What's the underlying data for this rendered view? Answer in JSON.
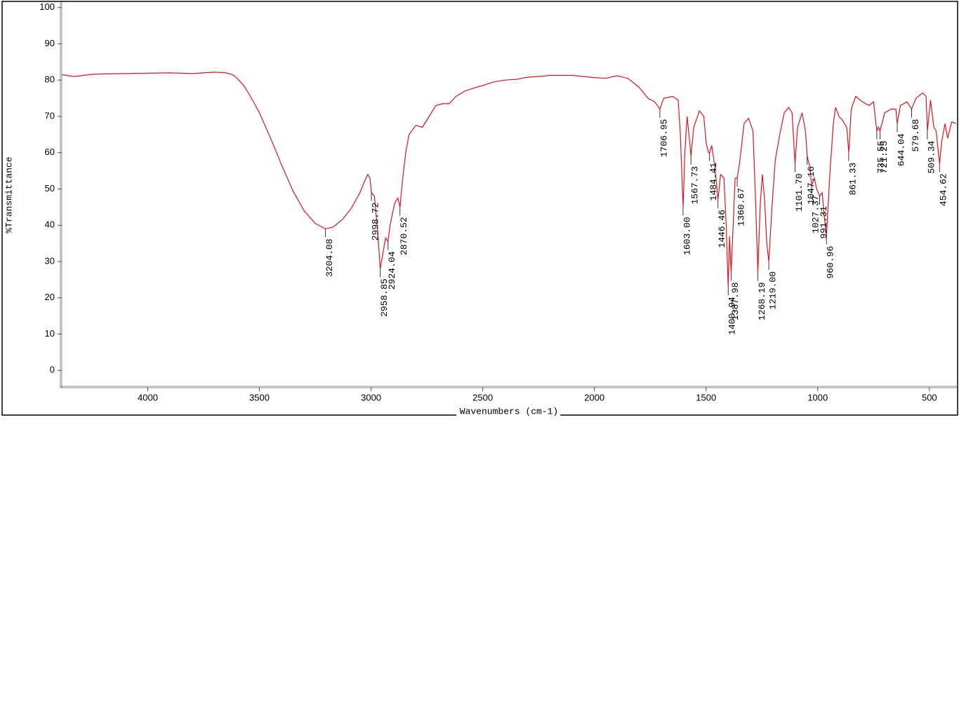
{
  "chart_data": {
    "type": "line",
    "x_label": "Wavenumbers (cm-1)",
    "y_label": "%Transmittance",
    "xlim": [
      4385,
      380
    ],
    "ylim": [
      -4.6,
      101.5
    ],
    "xticks": [
      4000,
      3500,
      3000,
      2500,
      2000,
      1500,
      1000,
      500
    ],
    "yticks": [
      0,
      10,
      20,
      30,
      40,
      50,
      60,
      70,
      80,
      90,
      100
    ],
    "series": [
      {
        "color": "#e0141e",
        "x": [
          4385,
          4330,
          4300,
          4250,
          4200,
          4100,
          4000,
          3900,
          3800,
          3750,
          3700,
          3650,
          3620,
          3600,
          3570,
          3540,
          3500,
          3450,
          3400,
          3350,
          3300,
          3250,
          3204,
          3170,
          3130,
          3090,
          3050,
          3030,
          3015,
          3005,
          2998.7,
          2985,
          2970,
          2958.9,
          2945,
          2935,
          2924,
          2915,
          2895,
          2880,
          2870.5,
          2860,
          2845,
          2830,
          2800,
          2770,
          2740,
          2710,
          2680,
          2650,
          2620,
          2580,
          2530,
          2500,
          2450,
          2400,
          2350,
          2300,
          2250,
          2200,
          2150,
          2100,
          2050,
          2000,
          1950,
          1900,
          1850,
          1800,
          1760,
          1730,
          1706.95,
          1690,
          1650,
          1625,
          1615,
          1603,
          1595,
          1585,
          1575,
          1567.7,
          1555,
          1530,
          1510,
          1500,
          1490,
          1484,
          1475,
          1460,
          1446.5,
          1435,
          1420,
          1410,
          1400.9,
          1395,
          1388,
          1380,
          1370,
          1360.7,
          1350,
          1330,
          1310,
          1290,
          1280,
          1268,
          1258,
          1248,
          1238,
          1228,
          1219,
          1205,
          1190,
          1170,
          1150,
          1130,
          1115,
          1101.7,
          1090,
          1070,
          1055,
          1047,
          1035,
          1027.4,
          1015,
          1005,
          991,
          980,
          970,
          961,
          945,
          930,
          920,
          905,
          890,
          870,
          861,
          850,
          830,
          800,
          770,
          750,
          735.6,
          728,
          721,
          700,
          670,
          650,
          644,
          630,
          600,
          579.7,
          560,
          530,
          515,
          509,
          495,
          480,
          470,
          454.6,
          445,
          430,
          418,
          400,
          381
        ],
        "values": [
          81.5,
          81,
          81.2,
          81.6,
          81.7,
          81.8,
          81.9,
          82,
          81.8,
          82,
          82.2,
          82,
          81.5,
          80.5,
          78.5,
          75.5,
          71,
          64,
          56.5,
          49.5,
          44,
          40.5,
          39,
          39.5,
          41.5,
          44.5,
          49,
          52,
          54,
          53,
          49,
          48,
          38,
          28,
          33,
          36.5,
          35.5,
          40,
          46,
          47.5,
          45,
          52,
          60,
          65,
          67.5,
          67,
          70,
          73,
          73.5,
          73.5,
          75.5,
          77,
          78,
          78.5,
          79.5,
          80,
          80.2,
          80.8,
          81,
          81.3,
          81.3,
          81.3,
          81,
          80.7,
          80.5,
          81.2,
          80.5,
          78,
          75,
          74,
          72,
          75,
          75.5,
          74.5,
          65,
          45,
          60,
          70,
          64,
          59,
          67,
          71.5,
          70,
          63,
          60,
          60,
          62,
          56,
          47,
          54,
          53,
          40,
          23,
          37,
          27,
          38,
          53,
          53,
          57,
          68,
          69.5,
          66,
          50,
          27,
          45,
          54,
          47,
          35,
          30,
          45,
          58,
          65,
          71,
          72.5,
          71,
          57,
          67,
          71,
          66,
          59,
          56,
          51,
          53,
          50,
          48,
          49,
          42,
          37,
          55,
          68,
          72.5,
          70,
          69,
          67,
          60,
          72,
          75.5,
          74,
          73,
          74,
          66,
          67,
          66,
          71,
          72,
          72,
          68,
          73,
          74,
          72,
          75,
          76.5,
          75.5,
          66,
          74.5,
          67,
          66,
          57,
          63,
          68,
          64,
          68.5,
          68
        ]
      }
    ],
    "peaks": [
      {
        "label": "3204.08",
        "x": 3204.08,
        "y": 39
      },
      {
        "label": "2998.72",
        "x": 2998.72,
        "y": 49
      },
      {
        "label": "2958.85",
        "x": 2958.85,
        "y": 28
      },
      {
        "label": "2924.04",
        "x": 2924.04,
        "y": 35.5
      },
      {
        "label": "2870.52",
        "x": 2870.52,
        "y": 45
      },
      {
        "label": "1706.95",
        "x": 1706.95,
        "y": 72
      },
      {
        "label": "1603.00",
        "x": 1603.0,
        "y": 45
      },
      {
        "label": "1567.73",
        "x": 1567.73,
        "y": 59
      },
      {
        "label": "1484.41",
        "x": 1484.41,
        "y": 60
      },
      {
        "label": "1446.46",
        "x": 1446.46,
        "y": 47
      },
      {
        "label": "1400.94",
        "x": 1400.94,
        "y": 23
      },
      {
        "label": "1387.98",
        "x": 1387.98,
        "y": 27
      },
      {
        "label": "1360.67",
        "x": 1360.67,
        "y": 53
      },
      {
        "label": "1268.19",
        "x": 1268.19,
        "y": 27
      },
      {
        "label": "1219.00",
        "x": 1219.0,
        "y": 30
      },
      {
        "label": "1101.70",
        "x": 1101.7,
        "y": 57
      },
      {
        "label": "1047.16",
        "x": 1047.16,
        "y": 59
      },
      {
        "label": "1027.37",
        "x": 1027.37,
        "y": 51
      },
      {
        "label": "991.31",
        "x": 991.31,
        "y": 48
      },
      {
        "label": "960.96",
        "x": 960.96,
        "y": 37
      },
      {
        "label": "861.33",
        "x": 861.33,
        "y": 60
      },
      {
        "label": "735.55",
        "x": 735.55,
        "y": 66
      },
      {
        "label": "721.25",
        "x": 721.25,
        "y": 66
      },
      {
        "label": "644.04",
        "x": 644.04,
        "y": 68
      },
      {
        "label": "579.68",
        "x": 579.68,
        "y": 72
      },
      {
        "label": "509.34",
        "x": 509.34,
        "y": 66
      },
      {
        "label": "454.62",
        "x": 454.62,
        "y": 57
      }
    ]
  }
}
